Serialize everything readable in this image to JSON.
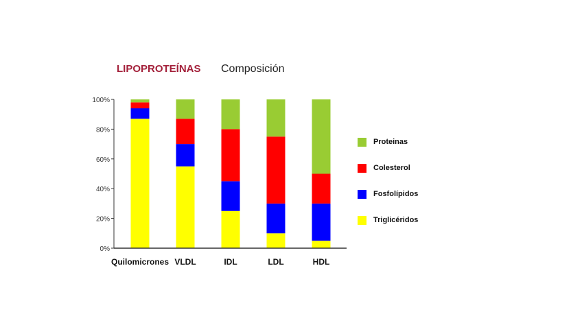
{
  "chart_data": {
    "type": "bar",
    "stacked": true,
    "title": "LIPOPROTEÍNAS",
    "subtitle": "Composición",
    "categories": [
      "Quilomicrones",
      "VLDL",
      "IDL",
      "LDL",
      "HDL"
    ],
    "series": [
      {
        "name": "Triglicéridos",
        "color": "#ffff00",
        "values": [
          87,
          55,
          25,
          10,
          5
        ]
      },
      {
        "name": "Fosfolípidos",
        "color": "#0000ff",
        "values": [
          7,
          15,
          20,
          20,
          25
        ]
      },
      {
        "name": "Colesterol",
        "color": "#ff0000",
        "values": [
          4,
          17,
          35,
          45,
          20
        ]
      },
      {
        "name": "Proteinas",
        "color": "#99cc33",
        "values": [
          2,
          13,
          20,
          25,
          50
        ]
      }
    ],
    "legend_order": [
      "Proteinas",
      "Colesterol",
      "Fosfolípidos",
      "Triglicéridos"
    ],
    "yticks": [
      "0%",
      "20%",
      "40%",
      "60%",
      "80%",
      "100%"
    ],
    "ylim": [
      0,
      100
    ],
    "xlabel": "",
    "ylabel": "",
    "grid": false,
    "legend_position": "right"
  }
}
